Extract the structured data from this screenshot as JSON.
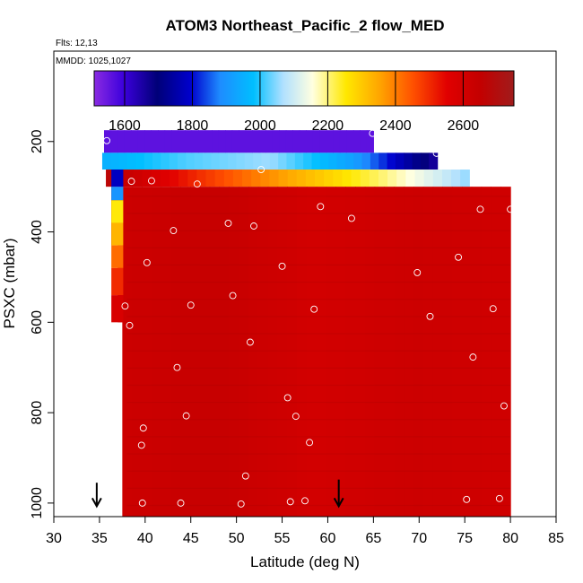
{
  "chart_data": {
    "type": "heatmap",
    "title": "ATOM3 Northeast_Pacific_2 flow_MED",
    "flights_label": "Flts: 12,13",
    "dates_label": "MMDD: 1025,1027",
    "xlabel": "Latitude (deg N)",
    "ylabel": "PSXC (mbar)",
    "xlim": [
      30,
      85
    ],
    "ylim": [
      1030,
      0
    ],
    "x_ticks": [
      "30",
      "35",
      "40",
      "45",
      "50",
      "55",
      "60",
      "65",
      "70",
      "75",
      "80",
      "85"
    ],
    "y_ticks": [
      "200",
      "400",
      "600",
      "800",
      "1000"
    ],
    "colorbar": {
      "range": [
        1510,
        2750
      ],
      "ticks": [
        "1600",
        "1800",
        "2000",
        "2200",
        "2400",
        "2600"
      ]
    },
    "layers": [
      {
        "p_top": 175,
        "p_bot": 225,
        "lat_start": 35.5,
        "lat_end": 65.0,
        "values": [
          1560,
          1560,
          1560,
          1560,
          1560
        ]
      },
      {
        "p_top": 225,
        "p_bot": 262,
        "lat_start": 35.3,
        "lat_end": 72.0,
        "values": [
          1950,
          2020,
          2060,
          1920,
          1650
        ]
      },
      {
        "p_top": 262,
        "p_bot": 300,
        "lat_start": 35.7,
        "lat_end": 75.5,
        "values": [
          2680,
          2500,
          2350,
          2210,
          2050
        ]
      },
      {
        "p_top": 300,
        "p_bot": 1030,
        "lat_start": 37.5,
        "lat_end": 80.0,
        "values": [
          2620,
          2640,
          2600,
          2620,
          2610
        ]
      }
    ],
    "left_edge_strip": [
      {
        "p": 262,
        "value": 1780
      },
      {
        "p": 300,
        "value": 1900
      },
      {
        "p": 330,
        "value": 2250
      },
      {
        "p": 380,
        "value": 2330
      },
      {
        "p": 430,
        "value": 2420
      },
      {
        "p": 480,
        "value": 2500
      },
      {
        "p": 540,
        "value": 2580
      }
    ],
    "sample_points": [
      {
        "lat": 35.8,
        "p": 198
      },
      {
        "lat": 64.9,
        "p": 182
      },
      {
        "lat": 71.9,
        "p": 226
      },
      {
        "lat": 38.5,
        "p": 288
      },
      {
        "lat": 40.7,
        "p": 287
      },
      {
        "lat": 45.7,
        "p": 294
      },
      {
        "lat": 52.7,
        "p": 262
      },
      {
        "lat": 59.2,
        "p": 344
      },
      {
        "lat": 62.6,
        "p": 370
      },
      {
        "lat": 76.7,
        "p": 350
      },
      {
        "lat": 80.0,
        "p": 350
      },
      {
        "lat": 43.1,
        "p": 397
      },
      {
        "lat": 49.1,
        "p": 381
      },
      {
        "lat": 51.9,
        "p": 387
      },
      {
        "lat": 40.2,
        "p": 468
      },
      {
        "lat": 55.0,
        "p": 476
      },
      {
        "lat": 69.8,
        "p": 490
      },
      {
        "lat": 74.3,
        "p": 456
      },
      {
        "lat": 37.8,
        "p": 564
      },
      {
        "lat": 45.0,
        "p": 562
      },
      {
        "lat": 49.6,
        "p": 541
      },
      {
        "lat": 58.5,
        "p": 571
      },
      {
        "lat": 71.2,
        "p": 587
      },
      {
        "lat": 78.1,
        "p": 570
      },
      {
        "lat": 38.3,
        "p": 607
      },
      {
        "lat": 51.5,
        "p": 644
      },
      {
        "lat": 75.9,
        "p": 677
      },
      {
        "lat": 43.5,
        "p": 700
      },
      {
        "lat": 55.6,
        "p": 767
      },
      {
        "lat": 56.5,
        "p": 808
      },
      {
        "lat": 44.5,
        "p": 807
      },
      {
        "lat": 79.3,
        "p": 785
      },
      {
        "lat": 39.8,
        "p": 834
      },
      {
        "lat": 58.0,
        "p": 866
      },
      {
        "lat": 39.6,
        "p": 872
      },
      {
        "lat": 51.0,
        "p": 940
      },
      {
        "lat": 39.7,
        "p": 1000
      },
      {
        "lat": 43.9,
        "p": 1000
      },
      {
        "lat": 50.5,
        "p": 1002
      },
      {
        "lat": 55.9,
        "p": 997
      },
      {
        "lat": 57.5,
        "p": 995
      },
      {
        "lat": 75.2,
        "p": 992
      },
      {
        "lat": 78.8,
        "p": 990
      }
    ],
    "flight_markers": [
      {
        "lat": 34.7,
        "p_from": 955,
        "p_to": 1005
      },
      {
        "lat": 61.2,
        "p_from": 948,
        "p_to": 1005
      }
    ]
  }
}
